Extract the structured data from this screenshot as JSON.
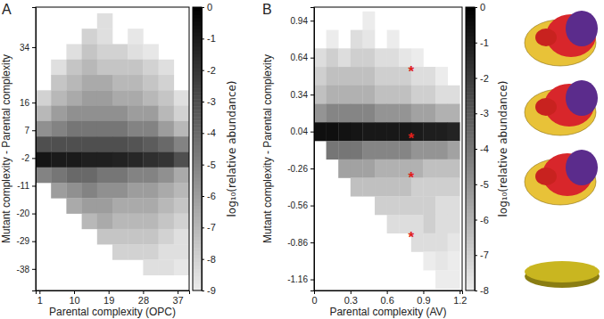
{
  "chart_data": [
    {
      "type": "heatmap",
      "title": "A",
      "x_label": "Parental complexity (OPC)",
      "y_label": "Mutant complexity - Parental complexity",
      "xlim": [
        0,
        40
      ],
      "ylim": [
        -45,
        47
      ],
      "xticks": [
        1,
        10,
        19,
        28,
        37
      ],
      "yticks": [
        34,
        16,
        7,
        -2,
        -11,
        -20,
        -29,
        -38
      ],
      "x": [
        2,
        6,
        10,
        14,
        18,
        22,
        26,
        30,
        34,
        38
      ],
      "y": [
        42.5,
        37.5,
        32.5,
        27.5,
        22.5,
        17.5,
        12.5,
        7.5,
        2.5,
        -2.5,
        -7.5,
        -12.5,
        -17.5,
        -22.5,
        -27.5,
        -32.5,
        -37.5
      ],
      "z": [
        [
          null,
          null,
          null,
          null,
          -8.5,
          null,
          null,
          null,
          null,
          null
        ],
        [
          null,
          null,
          null,
          -8,
          -8.5,
          null,
          -8.8,
          null,
          null,
          null
        ],
        [
          null,
          null,
          -8.5,
          -7.5,
          -8,
          -8,
          -8.5,
          -8.8,
          null,
          null
        ],
        [
          null,
          -8.5,
          -7.5,
          -7,
          -7.5,
          -7.5,
          -7.5,
          -8,
          -8.5,
          null
        ],
        [
          null,
          -7.5,
          -7,
          -6.5,
          -6.5,
          -7,
          -7,
          -7.5,
          -8,
          null
        ],
        [
          -8,
          -7,
          -6.5,
          -6,
          -6,
          -6.5,
          -6.5,
          -7,
          -7.5,
          -8.5
        ],
        [
          -7,
          -6,
          -5.5,
          -5.5,
          -5.5,
          -5.5,
          -6,
          -6,
          -7,
          -8
        ],
        [
          -5.5,
          -5,
          -4.5,
          -4.5,
          -4.5,
          -4.5,
          -5,
          -5,
          -6,
          -7
        ],
        [
          -3,
          -3,
          -3,
          -3,
          -3,
          -3,
          -3.2,
          -3.5,
          -4,
          -5
        ],
        [
          -0.8,
          -1,
          -1,
          -1.2,
          -1.2,
          -1.3,
          -1.5,
          -1.8,
          -2,
          -3
        ],
        [
          -5,
          -4.5,
          -4,
          -4,
          -4.5,
          -4.5,
          -5,
          -5,
          -5.5,
          -6.5
        ],
        [
          null,
          -6,
          -5.5,
          -5,
          -5.5,
          -5.5,
          -6,
          -6,
          -6.5,
          -7
        ],
        [
          null,
          null,
          -6.5,
          -6,
          -6,
          -6.5,
          -6.5,
          -6.5,
          -7,
          -7.5
        ],
        [
          null,
          null,
          null,
          -7,
          -6.5,
          -7,
          -7,
          -7,
          -7.5,
          -8
        ],
        [
          null,
          null,
          null,
          null,
          -7.5,
          -7.5,
          -7.5,
          -7.5,
          -8,
          -8.5
        ],
        [
          null,
          null,
          null,
          null,
          null,
          -8,
          -8,
          -8,
          -8.5,
          -8.5
        ],
        [
          null,
          null,
          null,
          null,
          null,
          null,
          null,
          -8.5,
          -8.5,
          -8.8
        ]
      ],
      "colorbar_range": [
        -9,
        0
      ],
      "colorbar_ticks": [
        0,
        -1,
        -2,
        -3,
        -4,
        -5,
        -6,
        -7,
        -8,
        -9
      ],
      "colorbar_label": "log₁₀(relative abundance)"
    },
    {
      "type": "heatmap",
      "title": "B",
      "x_label": "Parental complexity (AV)",
      "y_label": "Mutant complexity - Parental complexity",
      "xlim": [
        0,
        1.22
      ],
      "ylim": [
        -1.25,
        1.05
      ],
      "xticks": [
        0,
        0.3,
        0.6,
        0.9,
        1.2
      ],
      "yticks": [
        0.94,
        0.64,
        0.34,
        0.04,
        -0.26,
        -0.56,
        -0.86,
        -1.16
      ],
      "x": [
        0.05,
        0.15,
        0.25,
        0.35,
        0.45,
        0.55,
        0.65,
        0.75,
        0.85,
        0.95,
        1.05,
        1.15
      ],
      "y": [
        0.94,
        0.79,
        0.64,
        0.49,
        0.34,
        0.19,
        0.04,
        -0.11,
        -0.26,
        -0.41,
        -0.56,
        -0.71,
        -0.86,
        -1.01,
        -1.16
      ],
      "z": [
        [
          null,
          null,
          null,
          null,
          -8,
          null,
          null,
          null,
          null,
          null,
          null,
          null
        ],
        [
          null,
          -8,
          null,
          -7.5,
          -7.8,
          null,
          -8,
          null,
          null,
          null,
          null,
          null
        ],
        [
          -7.5,
          -7,
          -7.5,
          -7,
          -7,
          -7.5,
          -7.5,
          -7.8,
          -8,
          null,
          null,
          null
        ],
        [
          -7,
          -6.5,
          -6.5,
          -6.5,
          -6.5,
          -7,
          -7,
          -7,
          -7.5,
          -7.5,
          -8,
          null
        ],
        [
          -6.5,
          -6,
          -6,
          -6,
          -6,
          -6.5,
          -6.5,
          -6.5,
          -7,
          -7,
          -7.5,
          -7.5
        ],
        [
          -5,
          -4.5,
          -4.5,
          -4.5,
          -4.5,
          -5,
          -5,
          -5,
          -5.5,
          -5.5,
          -6,
          -6
        ],
        [
          -0.5,
          -0.5,
          -0.6,
          -0.7,
          -0.8,
          -0.8,
          -0.8,
          -0.8,
          -0.9,
          -1,
          -1,
          -1.2
        ],
        [
          null,
          -4,
          -4,
          -4,
          -4.5,
          -4.5,
          -4.5,
          -4.5,
          -5,
          -5,
          -5,
          -5.5
        ],
        [
          null,
          null,
          -5.5,
          -5.5,
          -5.5,
          -6,
          -6,
          -6,
          -6,
          -6.5,
          -6.5,
          -6.5
        ],
        [
          null,
          null,
          null,
          -6.5,
          -6.5,
          -6.5,
          -6.5,
          -6.5,
          -7,
          -7,
          -7,
          -7
        ],
        [
          null,
          null,
          null,
          null,
          null,
          -7,
          -7,
          -7,
          -7,
          -7,
          -7.5,
          -7.5
        ],
        [
          null,
          null,
          null,
          null,
          null,
          null,
          -7.5,
          -7.5,
          -7.5,
          -7,
          -7.5,
          -7.5
        ],
        [
          null,
          null,
          null,
          null,
          null,
          null,
          null,
          null,
          -7.5,
          -7.5,
          -7.5,
          -7.8
        ],
        [
          null,
          null,
          null,
          null,
          null,
          null,
          null,
          null,
          null,
          -8,
          -7.8,
          -8
        ],
        [
          null,
          null,
          null,
          null,
          null,
          null,
          null,
          null,
          null,
          null,
          -8,
          -8
        ]
      ],
      "annotations": [
        {
          "x": 0.8,
          "y": 0.56,
          "text": "*"
        },
        {
          "x": 0.8,
          "y": 0.02,
          "text": "*"
        },
        {
          "x": 0.8,
          "y": -0.3,
          "text": "*"
        },
        {
          "x": 0.8,
          "y": -0.78,
          "text": "*"
        }
      ],
      "colorbar_range": [
        -8,
        0
      ],
      "colorbar_ticks": [
        0,
        -1,
        -2,
        -3,
        -4,
        -5,
        -6,
        -7,
        -8
      ],
      "colorbar_label": "log₁₀(relative abundance)"
    }
  ]
}
